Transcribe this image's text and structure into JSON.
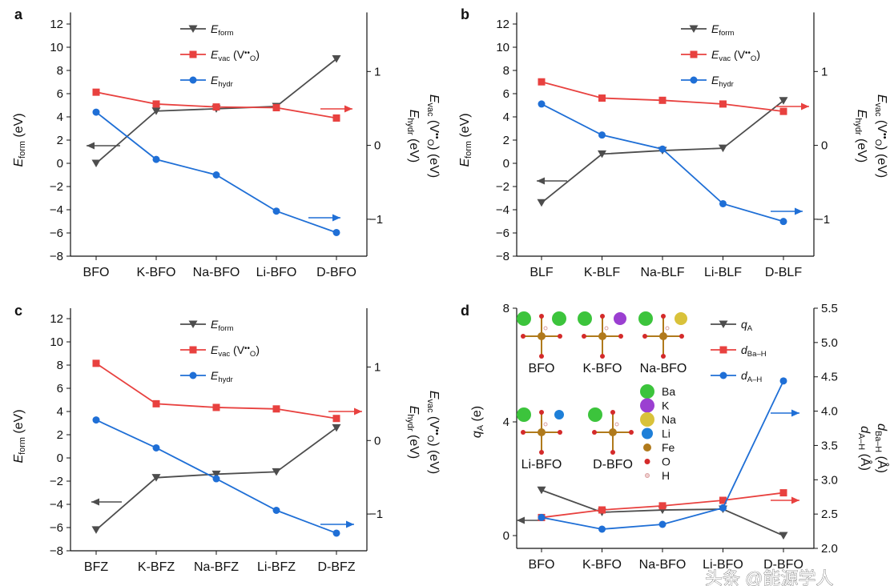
{
  "watermark": "头条 @能源学人",
  "colors": {
    "form": "#4d4d4d",
    "vac": "#e8413f",
    "hydr": "#1f6fd6",
    "axis": "#111111"
  },
  "legend_labels": {
    "form": [
      {
        "t": "E",
        "s": "i"
      },
      {
        "t": "form",
        "s": "sub"
      }
    ],
    "vac": [
      {
        "t": "E",
        "s": "i"
      },
      {
        "t": "vac",
        "s": "sub"
      },
      {
        "t": " (V"
      },
      {
        "t": "••",
        "s": "sup"
      },
      {
        "t": "O",
        "s": "subx"
      },
      {
        "t": ")"
      }
    ],
    "hydr": [
      {
        "t": "E",
        "s": "i"
      },
      {
        "t": "hydr",
        "s": "sub"
      }
    ],
    "qA": [
      {
        "t": "q",
        "s": "i"
      },
      {
        "t": "A",
        "s": "sub"
      }
    ],
    "dBaH": [
      {
        "t": "d",
        "s": "i"
      },
      {
        "t": "Ba–H",
        "s": "sub"
      }
    ],
    "dAH": [
      {
        "t": "d",
        "s": "i"
      },
      {
        "t": "A–H",
        "s": "sub"
      }
    ]
  },
  "chart_data": [
    {
      "panel": "a",
      "type": "line",
      "categories": [
        "BFO",
        "K-BFO",
        "Na-BFO",
        "Li-BFO",
        "D-BFO"
      ],
      "ylabel_left": [
        {
          "t": "E",
          "s": "i"
        },
        {
          "t": "form",
          "s": "sub"
        },
        {
          "t": " (eV)"
        }
      ],
      "ylabel_right": [
        [
          {
            "t": "E",
            "s": "i"
          },
          {
            "t": "vac",
            "s": "sub"
          },
          {
            "t": " (V"
          },
          {
            "t": "••",
            "s": "sup"
          },
          {
            "t": "O",
            "s": "subx"
          },
          {
            "t": ") (eV)"
          }
        ],
        [
          {
            "t": "E",
            "s": "i"
          },
          {
            "t": "hydr",
            "s": "sub"
          },
          {
            "t": " (eV)"
          }
        ]
      ],
      "ylim_left": [
        -8,
        13
      ],
      "yticks_left": [
        "-8",
        "-6",
        "-4",
        "-2",
        "0",
        "2",
        "4",
        "6",
        "8",
        "10",
        "12"
      ],
      "ylim_right": [
        -1.5,
        1.8
      ],
      "yticks_right": [
        "-1",
        "0",
        "1"
      ],
      "grid": false,
      "legend": "top-center",
      "series": [
        {
          "key": "form",
          "axis": "left",
          "marker": "triangle-down",
          "values": [
            0,
            4.5,
            4.7,
            4.9,
            9.0
          ]
        },
        {
          "key": "vac",
          "axis": "right",
          "marker": "square",
          "values": [
            0.72,
            0.56,
            0.52,
            0.51,
            0.37
          ]
        },
        {
          "key": "hydr",
          "axis": "right",
          "marker": "circle",
          "values": [
            0.45,
            -0.19,
            -0.4,
            -0.89,
            -1.18
          ]
        }
      ]
    },
    {
      "panel": "b",
      "type": "line",
      "categories": [
        "BLF",
        "K-BLF",
        "Na-BLF",
        "Li-BLF",
        "D-BLF"
      ],
      "ylabel_left": [
        {
          "t": "E",
          "s": "i"
        },
        {
          "t": "form",
          "s": "sub"
        },
        {
          "t": " (eV)"
        }
      ],
      "ylabel_right": [
        [
          {
            "t": "E",
            "s": "i"
          },
          {
            "t": "vac",
            "s": "sub"
          },
          {
            "t": " (V"
          },
          {
            "t": "••",
            "s": "sup"
          },
          {
            "t": "O",
            "s": "subx"
          },
          {
            "t": ") (eV)"
          }
        ],
        [
          {
            "t": "E",
            "s": "i"
          },
          {
            "t": "hydr",
            "s": "sub"
          },
          {
            "t": " (eV)"
          }
        ]
      ],
      "ylim_left": [
        -8,
        13
      ],
      "yticks_left": [
        "-8",
        "-6",
        "-4",
        "-2",
        "0",
        "2",
        "4",
        "6",
        "8",
        "10",
        "12"
      ],
      "ylim_right": [
        -1.5,
        1.8
      ],
      "yticks_right": [
        "-1",
        "0",
        "1"
      ],
      "grid": false,
      "legend": "top-center",
      "series": [
        {
          "key": "form",
          "axis": "left",
          "marker": "triangle-down",
          "values": [
            -3.4,
            0.8,
            1.1,
            1.3,
            5.4
          ]
        },
        {
          "key": "vac",
          "axis": "right",
          "marker": "square",
          "values": [
            0.86,
            0.64,
            0.61,
            0.56,
            0.46
          ]
        },
        {
          "key": "hydr",
          "axis": "right",
          "marker": "circle",
          "values": [
            0.56,
            0.14,
            -0.05,
            -0.79,
            -1.03
          ]
        }
      ]
    },
    {
      "panel": "c",
      "type": "line",
      "categories": [
        "BFZ",
        "K-BFZ",
        "Na-BFZ",
        "Li-BFZ",
        "D-BFZ"
      ],
      "ylabel_left": [
        {
          "t": "E",
          "s": "i"
        },
        {
          "t": "form",
          "s": "sub"
        },
        {
          "t": " (eV)"
        }
      ],
      "ylabel_right": [
        [
          {
            "t": "E",
            "s": "i"
          },
          {
            "t": "vac",
            "s": "sub"
          },
          {
            "t": " (V"
          },
          {
            "t": "••",
            "s": "sup"
          },
          {
            "t": "O",
            "s": "subx"
          },
          {
            "t": ") (eV)"
          }
        ],
        [
          {
            "t": "E",
            "s": "i"
          },
          {
            "t": "hydr",
            "s": "sub"
          },
          {
            "t": " (eV)"
          }
        ]
      ],
      "ylim_left": [
        -8,
        12.9
      ],
      "yticks_left": [
        "-8",
        "-6",
        "-4",
        "-2",
        "0",
        "2",
        "4",
        "6",
        "8",
        "10",
        "12"
      ],
      "ylim_right": [
        -1.5,
        1.8
      ],
      "yticks_right": [
        "-1",
        "0",
        "1"
      ],
      "grid": false,
      "legend": "top-center",
      "series": [
        {
          "key": "form",
          "axis": "left",
          "marker": "triangle-down",
          "values": [
            -6.2,
            -1.7,
            -1.4,
            -1.2,
            2.6
          ]
        },
        {
          "key": "vac",
          "axis": "right",
          "marker": "square",
          "values": [
            1.05,
            0.5,
            0.45,
            0.43,
            0.3
          ]
        },
        {
          "key": "hydr",
          "axis": "right",
          "marker": "circle",
          "values": [
            0.28,
            -0.1,
            -0.52,
            -0.95,
            -1.26
          ]
        }
      ]
    },
    {
      "panel": "d",
      "type": "line",
      "categories": [
        "BFO",
        "K-BFO",
        "Na-BFO",
        "Li-BFO",
        "D-BFO"
      ],
      "ylabel_left": [
        {
          "t": "q",
          "s": "i"
        },
        {
          "t": "A",
          "s": "sub"
        },
        {
          "t": " (e)"
        }
      ],
      "ylabel_right": [
        [
          {
            "t": "d",
            "s": "i"
          },
          {
            "t": "Ba–H",
            "s": "sub"
          },
          {
            "t": " (Å)"
          }
        ],
        [
          {
            "t": "d",
            "s": "i"
          },
          {
            "t": "A–H",
            "s": "sub"
          },
          {
            "t": " (Å)"
          }
        ]
      ],
      "ylim_left": [
        -0.45,
        8
      ],
      "yticks_left": [
        "0",
        "4",
        "8"
      ],
      "ylim_right": [
        2.0,
        5.5
      ],
      "yticks_right": [
        "2.0",
        "2.5",
        "3.0",
        "3.5",
        "4.0",
        "4.5",
        "5.0",
        "5.5"
      ],
      "grid": false,
      "legend": "top-right",
      "series": [
        {
          "key": "qA",
          "axis": "left",
          "marker": "triangle-down",
          "values": [
            1.6,
            0.82,
            0.9,
            0.93,
            0
          ]
        },
        {
          "key": "dBaH",
          "axis": "right",
          "marker": "square",
          "values": [
            2.45,
            2.56,
            2.62,
            2.7,
            2.81
          ]
        },
        {
          "key": "dAH",
          "axis": "right",
          "marker": "circle",
          "values": [
            2.45,
            2.28,
            2.35,
            2.59,
            4.44
          ]
        }
      ],
      "inset": {
        "structures": [
          "BFO",
          "K-BFO",
          "Na-BFO",
          "Li-BFO",
          "D-BFO"
        ],
        "elements": [
          {
            "name": "Ba",
            "color": "#3cc43c"
          },
          {
            "name": "K",
            "color": "#9b3fd1"
          },
          {
            "name": "Na",
            "color": "#d9c23a"
          },
          {
            "name": "Li",
            "color": "#1e7fd8"
          },
          {
            "name": "Fe",
            "color": "#b07a1c"
          },
          {
            "name": "O",
            "color": "#d42a2a"
          },
          {
            "name": "H",
            "color": "#f0d0d0"
          }
        ]
      }
    }
  ]
}
